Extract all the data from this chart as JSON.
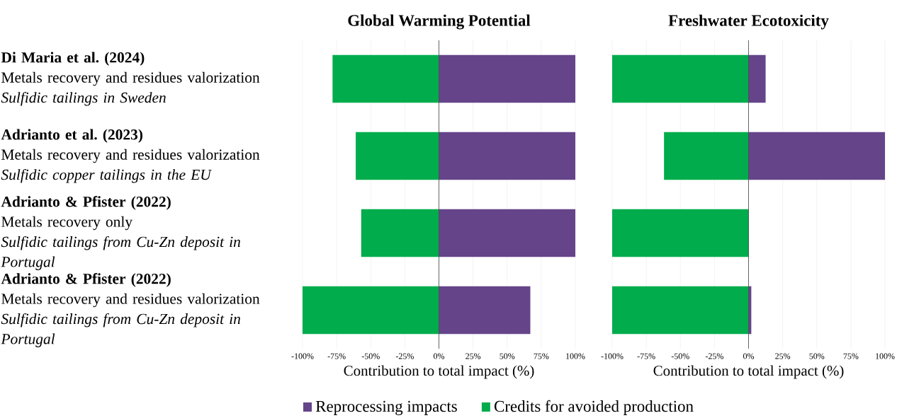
{
  "chart_data": [
    {
      "type": "bar",
      "orientation": "horizontal",
      "title": "Global Warming Potential",
      "xlabel": "Contribution to total impact (%)",
      "categories": [
        "**Di Maria et al. (2024)**\nMetals recovery and residues valorization\n*Sulfidic tailings in Sweden*",
        "**Adrianto et al. (2023)**\nMetals recovery and residues valorization\n*Sulfidic copper tailings in the EU*",
        "**Adrianto & Pfister (2022)**\nMetals recovery only\n*Sulfidic tailings from Cu-Zn deposit in Portugal*",
        "**Adrianto & Pfister (2022)**\nMetals recovery and residues valorization\n*Sulfidic tailings from Cu-Zn deposit in Portugal*"
      ],
      "series": [
        {
          "name": "Reprocessing impacts",
          "color": "#65448a",
          "values": [
            100,
            100,
            100,
            67
          ]
        },
        {
          "name": "Credits for avoided production",
          "color": "#00ac4c",
          "values": [
            -78,
            -61,
            -57,
            -100
          ]
        }
      ],
      "xlim": [
        -100,
        100
      ],
      "xticks": [
        {
          "value": -100,
          "label": "-100%"
        },
        {
          "value": -75,
          "label": "-75%"
        },
        {
          "value": -50,
          "label": "-50%"
        },
        {
          "value": -25,
          "label": "-25%"
        },
        {
          "value": 0,
          "label": "0%"
        },
        {
          "value": 25,
          "label": "25%"
        },
        {
          "value": 50,
          "label": "50%"
        },
        {
          "value": 75,
          "label": "75%"
        },
        {
          "value": 100,
          "label": "100%"
        }
      ],
      "ref_lines": [
        {
          "axis": "x",
          "value": 0,
          "color": "#404040"
        }
      ],
      "grid": "x",
      "legend": "bottom",
      "stacked": true
    },
    {
      "type": "bar",
      "orientation": "horizontal",
      "title": "Freshwater Ecotoxicity",
      "xlabel": "Contribution to total impact (%)",
      "categories": [
        null,
        null,
        null,
        null
      ],
      "series": [
        {
          "color": "#65448a",
          "values": [
            12.5,
            100,
            0,
            2
          ]
        },
        {
          "color": "#00ac4c",
          "values": [
            -100,
            -62,
            -100,
            -100
          ]
        }
      ],
      "xlim": [
        -100,
        100
      ],
      "xticks": [
        {
          "value": -100,
          "label": "-100%"
        },
        {
          "value": -75,
          "label": "-75%"
        },
        {
          "value": -50,
          "label": "-50%"
        },
        {
          "value": -25,
          "label": "-25%"
        },
        {
          "value": 0,
          "label": "0%"
        },
        {
          "value": 25,
          "label": "25%"
        },
        {
          "value": 50,
          "label": "50%"
        },
        {
          "value": 75,
          "label": "75%"
        },
        {
          "value": 100,
          "label": "100%"
        }
      ],
      "ref_lines": [
        {
          "axis": "x",
          "value": 0,
          "color": "#404040"
        }
      ],
      "grid": "x",
      "tick_labels": "x",
      "stacked": true
    }
  ]
}
